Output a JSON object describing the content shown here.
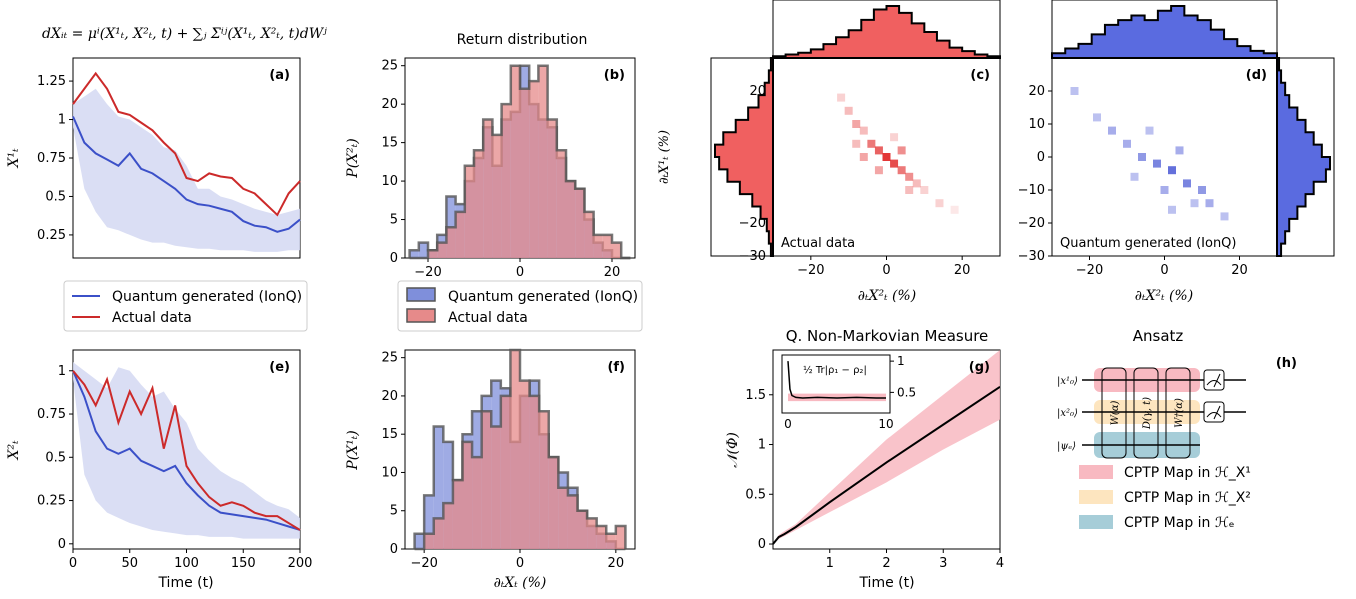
{
  "equation": "dXᵢₜ = μⁱ(X¹ₜ, X²ₜ, t) + ∑ⱼ Σⁱʲ(X¹ₜ, X²ₜ, t)dWʲ",
  "colors": {
    "quantum": "#3b50c8",
    "actual": "#cc2a2a",
    "band": "#d4d8f2",
    "quantum_fill": "#7f8fdb",
    "actual_fill": "#e68a8a",
    "pink": "#f8b9c1",
    "yellow": "#fde5bf",
    "teal": "#a6cdd8"
  },
  "legend": {
    "quantum": "Quantum generated (IonQ)",
    "actual": "Actual data"
  },
  "panels": {
    "a": {
      "label": "(a)",
      "ylabel": "X¹ₜ"
    },
    "b": {
      "label": "(b)",
      "title": "Return distribution",
      "ylabel": "P(X²ₜ)"
    },
    "c": {
      "label": "(c)",
      "ylabel": "∂ₜX¹ₜ (%)",
      "xlabel": "∂ₜX²ₜ (%)",
      "note": "Actual data"
    },
    "d": {
      "label": "(d)",
      "xlabel": "∂ₜX²ₜ (%)",
      "note": "Quantum generated (IonQ)"
    },
    "e": {
      "label": "(e)",
      "ylabel": "X²ₜ",
      "xlabel": "Time (t)"
    },
    "f": {
      "label": "(f)",
      "ylabel": "P(X¹ₜ)",
      "xlabel": "∂ₜXₜ (%)"
    },
    "g": {
      "label": "(g)",
      "title": "Q. Non-Markovian Measure",
      "ylabel": "𝒩(Φ)",
      "xlabel": "Time (t)",
      "inset_label": "½ Tr|ρ₁ − ρ₂|"
    },
    "h": {
      "label": "(h)",
      "title": "Ansatz",
      "wires": [
        "|x¹₀⟩",
        "|x²₀⟩",
        "|ψₑ⟩"
      ],
      "gates": [
        "W(α)",
        "D(γ, t)",
        "W†(α)"
      ],
      "legend": [
        "CPTP Map in ℋ_X¹",
        "CPTP Map in ℋ_X²",
        "CPTP Map in ℋₑ"
      ]
    }
  },
  "chart_data": [
    {
      "id": "a",
      "type": "line",
      "xlim": [
        0,
        200
      ],
      "ylim": [
        0.1,
        1.4
      ],
      "yticks": [
        0.25,
        0.5,
        0.75,
        1,
        1.25
      ],
      "ytick_labels": [
        "0.25",
        "0.5",
        "0.75",
        "1",
        "1.25"
      ],
      "x": [
        0,
        10,
        20,
        30,
        40,
        50,
        60,
        70,
        80,
        90,
        100,
        110,
        120,
        130,
        140,
        150,
        160,
        170,
        180,
        190,
        200
      ],
      "series": [
        {
          "name": "Quantum generated (IonQ)",
          "values": [
            1.02,
            0.85,
            0.78,
            0.74,
            0.7,
            0.78,
            0.68,
            0.65,
            0.6,
            0.55,
            0.48,
            0.45,
            0.44,
            0.42,
            0.4,
            0.34,
            0.31,
            0.3,
            0.27,
            0.29,
            0.35
          ]
        },
        {
          "name": "Actual data",
          "values": [
            1.1,
            1.2,
            1.3,
            1.2,
            1.05,
            1.03,
            0.98,
            0.93,
            0.85,
            0.78,
            0.62,
            0.6,
            0.65,
            0.63,
            0.62,
            0.55,
            0.52,
            0.45,
            0.38,
            0.52,
            0.6
          ]
        }
      ],
      "band_lower": [
        0.95,
        0.55,
        0.4,
        0.3,
        0.28,
        0.25,
        0.22,
        0.2,
        0.2,
        0.18,
        0.17,
        0.16,
        0.16,
        0.15,
        0.15,
        0.15,
        0.14,
        0.14,
        0.14,
        0.15,
        0.15
      ],
      "band_upper": [
        1.1,
        1.15,
        1.2,
        1.1,
        1.02,
        1.0,
        0.95,
        0.9,
        0.82,
        0.8,
        0.7,
        0.55,
        0.55,
        0.5,
        0.48,
        0.45,
        0.42,
        0.4,
        0.38,
        0.4,
        0.42
      ]
    },
    {
      "id": "b",
      "type": "step-histogram",
      "xlim": [
        -25,
        25
      ],
      "ylim": [
        0,
        26
      ],
      "xticks": [
        -20,
        0,
        20
      ],
      "yticks": [
        0,
        5,
        10,
        15,
        20,
        25
      ],
      "bin_edges": [
        -24,
        -22,
        -20,
        -18,
        -16,
        -14,
        -12,
        -10,
        -8,
        -6,
        -4,
        -2,
        0,
        2,
        4,
        6,
        8,
        10,
        12,
        14,
        16,
        18,
        20,
        22,
        24
      ],
      "series": [
        {
          "name": "Quantum generated (IonQ)",
          "values": [
            1,
            2,
            1,
            3,
            8,
            7,
            10,
            13,
            17,
            12,
            18,
            19,
            25,
            20,
            18,
            17,
            13,
            10,
            9,
            5,
            2,
            1,
            0,
            0
          ]
        },
        {
          "name": "Actual data",
          "values": [
            0,
            0,
            1,
            2,
            4,
            6,
            12,
            14,
            18,
            16,
            20,
            25,
            22,
            23,
            25,
            18,
            14,
            10,
            9,
            6,
            3,
            3,
            2,
            0
          ]
        }
      ]
    },
    {
      "id": "e",
      "type": "line",
      "xlim": [
        0,
        200
      ],
      "ylim": [
        -0.03,
        1.12
      ],
      "xticks": [
        0,
        50,
        100,
        150,
        200
      ],
      "yticks": [
        0,
        0.25,
        0.5,
        0.75,
        1
      ],
      "ytick_labels": [
        "0",
        "0.25",
        "0.5",
        "0.75",
        "1"
      ],
      "x": [
        0,
        10,
        20,
        30,
        40,
        50,
        60,
        70,
        80,
        90,
        100,
        110,
        120,
        130,
        140,
        150,
        160,
        170,
        180,
        190,
        200
      ],
      "series": [
        {
          "name": "Quantum generated (IonQ)",
          "values": [
            1.0,
            0.85,
            0.65,
            0.55,
            0.52,
            0.55,
            0.48,
            0.45,
            0.42,
            0.45,
            0.35,
            0.28,
            0.22,
            0.18,
            0.17,
            0.16,
            0.15,
            0.14,
            0.12,
            0.1,
            0.08
          ]
        },
        {
          "name": "Actual data",
          "values": [
            1.0,
            0.92,
            0.8,
            0.95,
            0.7,
            0.88,
            0.75,
            0.9,
            0.55,
            0.8,
            0.45,
            0.35,
            0.27,
            0.22,
            0.24,
            0.22,
            0.18,
            0.16,
            0.16,
            0.12,
            0.08
          ]
        }
      ],
      "band_lower": [
        0.95,
        0.4,
        0.25,
        0.18,
        0.15,
        0.12,
        0.1,
        0.08,
        0.07,
        0.06,
        0.05,
        0.05,
        0.04,
        0.04,
        0.04,
        0.03,
        0.03,
        0.03,
        0.03,
        0.03,
        0.03
      ],
      "band_upper": [
        1.05,
        1.0,
        0.95,
        0.9,
        1.02,
        1.0,
        0.92,
        0.85,
        0.88,
        0.78,
        0.7,
        0.55,
        0.48,
        0.42,
        0.38,
        0.35,
        0.3,
        0.25,
        0.22,
        0.2,
        0.15
      ]
    },
    {
      "id": "f",
      "type": "step-histogram",
      "xlim": [
        -24,
        24
      ],
      "ylim": [
        0,
        26
      ],
      "xticks": [
        -20,
        0,
        20
      ],
      "yticks": [
        0,
        5,
        10,
        15,
        20,
        25
      ],
      "bin_edges": [
        -22,
        -20,
        -18,
        -16,
        -14,
        -12,
        -10,
        -8,
        -6,
        -4,
        -2,
        0,
        2,
        4,
        6,
        8,
        10,
        12,
        14,
        16,
        18,
        20,
        22
      ],
      "series": [
        {
          "name": "Quantum generated (IonQ)",
          "values": [
            2,
            7,
            16,
            14,
            9,
            15,
            18,
            20,
            22,
            21,
            14,
            20,
            22,
            15,
            12,
            10,
            8,
            5,
            3,
            2,
            1,
            0
          ]
        },
        {
          "name": "Actual data",
          "values": [
            0,
            2,
            4,
            6,
            9,
            14,
            12,
            18,
            16,
            20,
            26,
            22,
            20,
            18,
            12,
            8,
            7,
            5,
            4,
            3,
            2,
            3
          ]
        }
      ]
    },
    {
      "id": "c",
      "type": "heatmap",
      "xlim": [
        -30,
        30
      ],
      "ylim": [
        -30,
        30
      ],
      "xticks": [
        -20,
        0,
        20
      ],
      "yticks": [
        -30,
        -20,
        -10,
        0,
        10,
        20
      ],
      "points": [
        [
          -12,
          18,
          0.2
        ],
        [
          -10,
          14,
          0.3
        ],
        [
          -8,
          10,
          0.4
        ],
        [
          -6,
          8,
          0.3
        ],
        [
          -4,
          4,
          0.6
        ],
        [
          -2,
          2,
          0.7
        ],
        [
          0,
          0,
          0.9
        ],
        [
          2,
          -2,
          0.8
        ],
        [
          4,
          -4,
          0.6
        ],
        [
          6,
          -6,
          0.5
        ],
        [
          8,
          -8,
          0.3
        ],
        [
          10,
          -10,
          0.2
        ],
        [
          14,
          -14,
          0.2
        ],
        [
          18,
          -16,
          0.1
        ],
        [
          -6,
          0,
          0.4
        ],
        [
          4,
          2,
          0.5
        ],
        [
          -2,
          -4,
          0.4
        ],
        [
          6,
          -10,
          0.3
        ],
        [
          -8,
          4,
          0.3
        ],
        [
          2,
          6,
          0.2
        ]
      ],
      "marginal_top": [
        1,
        2,
        3,
        5,
        8,
        12,
        16,
        22,
        28,
        30,
        26,
        20,
        15,
        10,
        6,
        4,
        2,
        1
      ],
      "marginal_left": [
        1,
        2,
        4,
        7,
        12,
        18,
        24,
        28,
        26,
        22,
        16,
        10,
        6,
        3,
        2,
        1
      ]
    },
    {
      "id": "d",
      "type": "heatmap",
      "xlim": [
        -30,
        30
      ],
      "ylim": [
        -30,
        30
      ],
      "xticks": [
        -20,
        0,
        20
      ],
      "yticks": [
        -30,
        -20,
        -10,
        0,
        10,
        20
      ],
      "points": [
        [
          -24,
          20,
          0.3
        ],
        [
          -18,
          12,
          0.3
        ],
        [
          -14,
          8,
          0.4
        ],
        [
          -10,
          4,
          0.4
        ],
        [
          -6,
          0,
          0.5
        ],
        [
          -2,
          -2,
          0.6
        ],
        [
          2,
          -4,
          0.7
        ],
        [
          6,
          -8,
          0.6
        ],
        [
          10,
          -10,
          0.5
        ],
        [
          12,
          -14,
          0.4
        ],
        [
          16,
          -18,
          0.3
        ],
        [
          -4,
          8,
          0.3
        ],
        [
          0,
          -10,
          0.4
        ],
        [
          4,
          2,
          0.4
        ],
        [
          8,
          -14,
          0.3
        ],
        [
          -8,
          -6,
          0.3
        ],
        [
          2,
          -16,
          0.3
        ]
      ],
      "marginal_top": [
        2,
        4,
        6,
        10,
        14,
        16,
        18,
        16,
        20,
        22,
        18,
        16,
        12,
        8,
        5,
        3,
        2
      ],
      "marginal_right": [
        1,
        2,
        4,
        6,
        10,
        14,
        18,
        22,
        26,
        24,
        18,
        14,
        10,
        6,
        4,
        2
      ]
    },
    {
      "id": "g",
      "type": "line",
      "xlim": [
        0,
        4
      ],
      "ylim": [
        -0.05,
        1.95
      ],
      "xticks": [
        1,
        2,
        3,
        4
      ],
      "yticks": [
        0,
        0.5,
        1,
        1.5
      ],
      "ytick_labels": [
        "0",
        "0.5",
        "1",
        "1.5"
      ],
      "x": [
        0,
        0.1,
        0.2,
        0.4,
        1,
        2,
        3,
        4
      ],
      "series": [
        {
          "name": "𝒩(Φ)",
          "values": [
            0,
            0.07,
            0.1,
            0.17,
            0.42,
            0.82,
            1.2,
            1.58
          ]
        }
      ],
      "band_lower": [
        0,
        0.05,
        0.08,
        0.14,
        0.32,
        0.62,
        0.95,
        1.25
      ],
      "band_upper": [
        0,
        0.09,
        0.13,
        0.2,
        0.52,
        1.05,
        1.5,
        1.95
      ],
      "inset": {
        "xlim": [
          0,
          10
        ],
        "ylim": [
          0.25,
          1.05
        ],
        "xticks": [
          0,
          10
        ],
        "yticks": [
          0.5,
          1
        ],
        "ytick_labels": [
          "0.5",
          "1"
        ],
        "x": [
          0,
          0.2,
          0.4,
          0.8,
          1.5,
          3,
          5,
          7,
          9,
          10
        ],
        "values": [
          1.0,
          0.55,
          0.45,
          0.42,
          0.41,
          0.42,
          0.41,
          0.42,
          0.41,
          0.41
        ]
      }
    }
  ]
}
